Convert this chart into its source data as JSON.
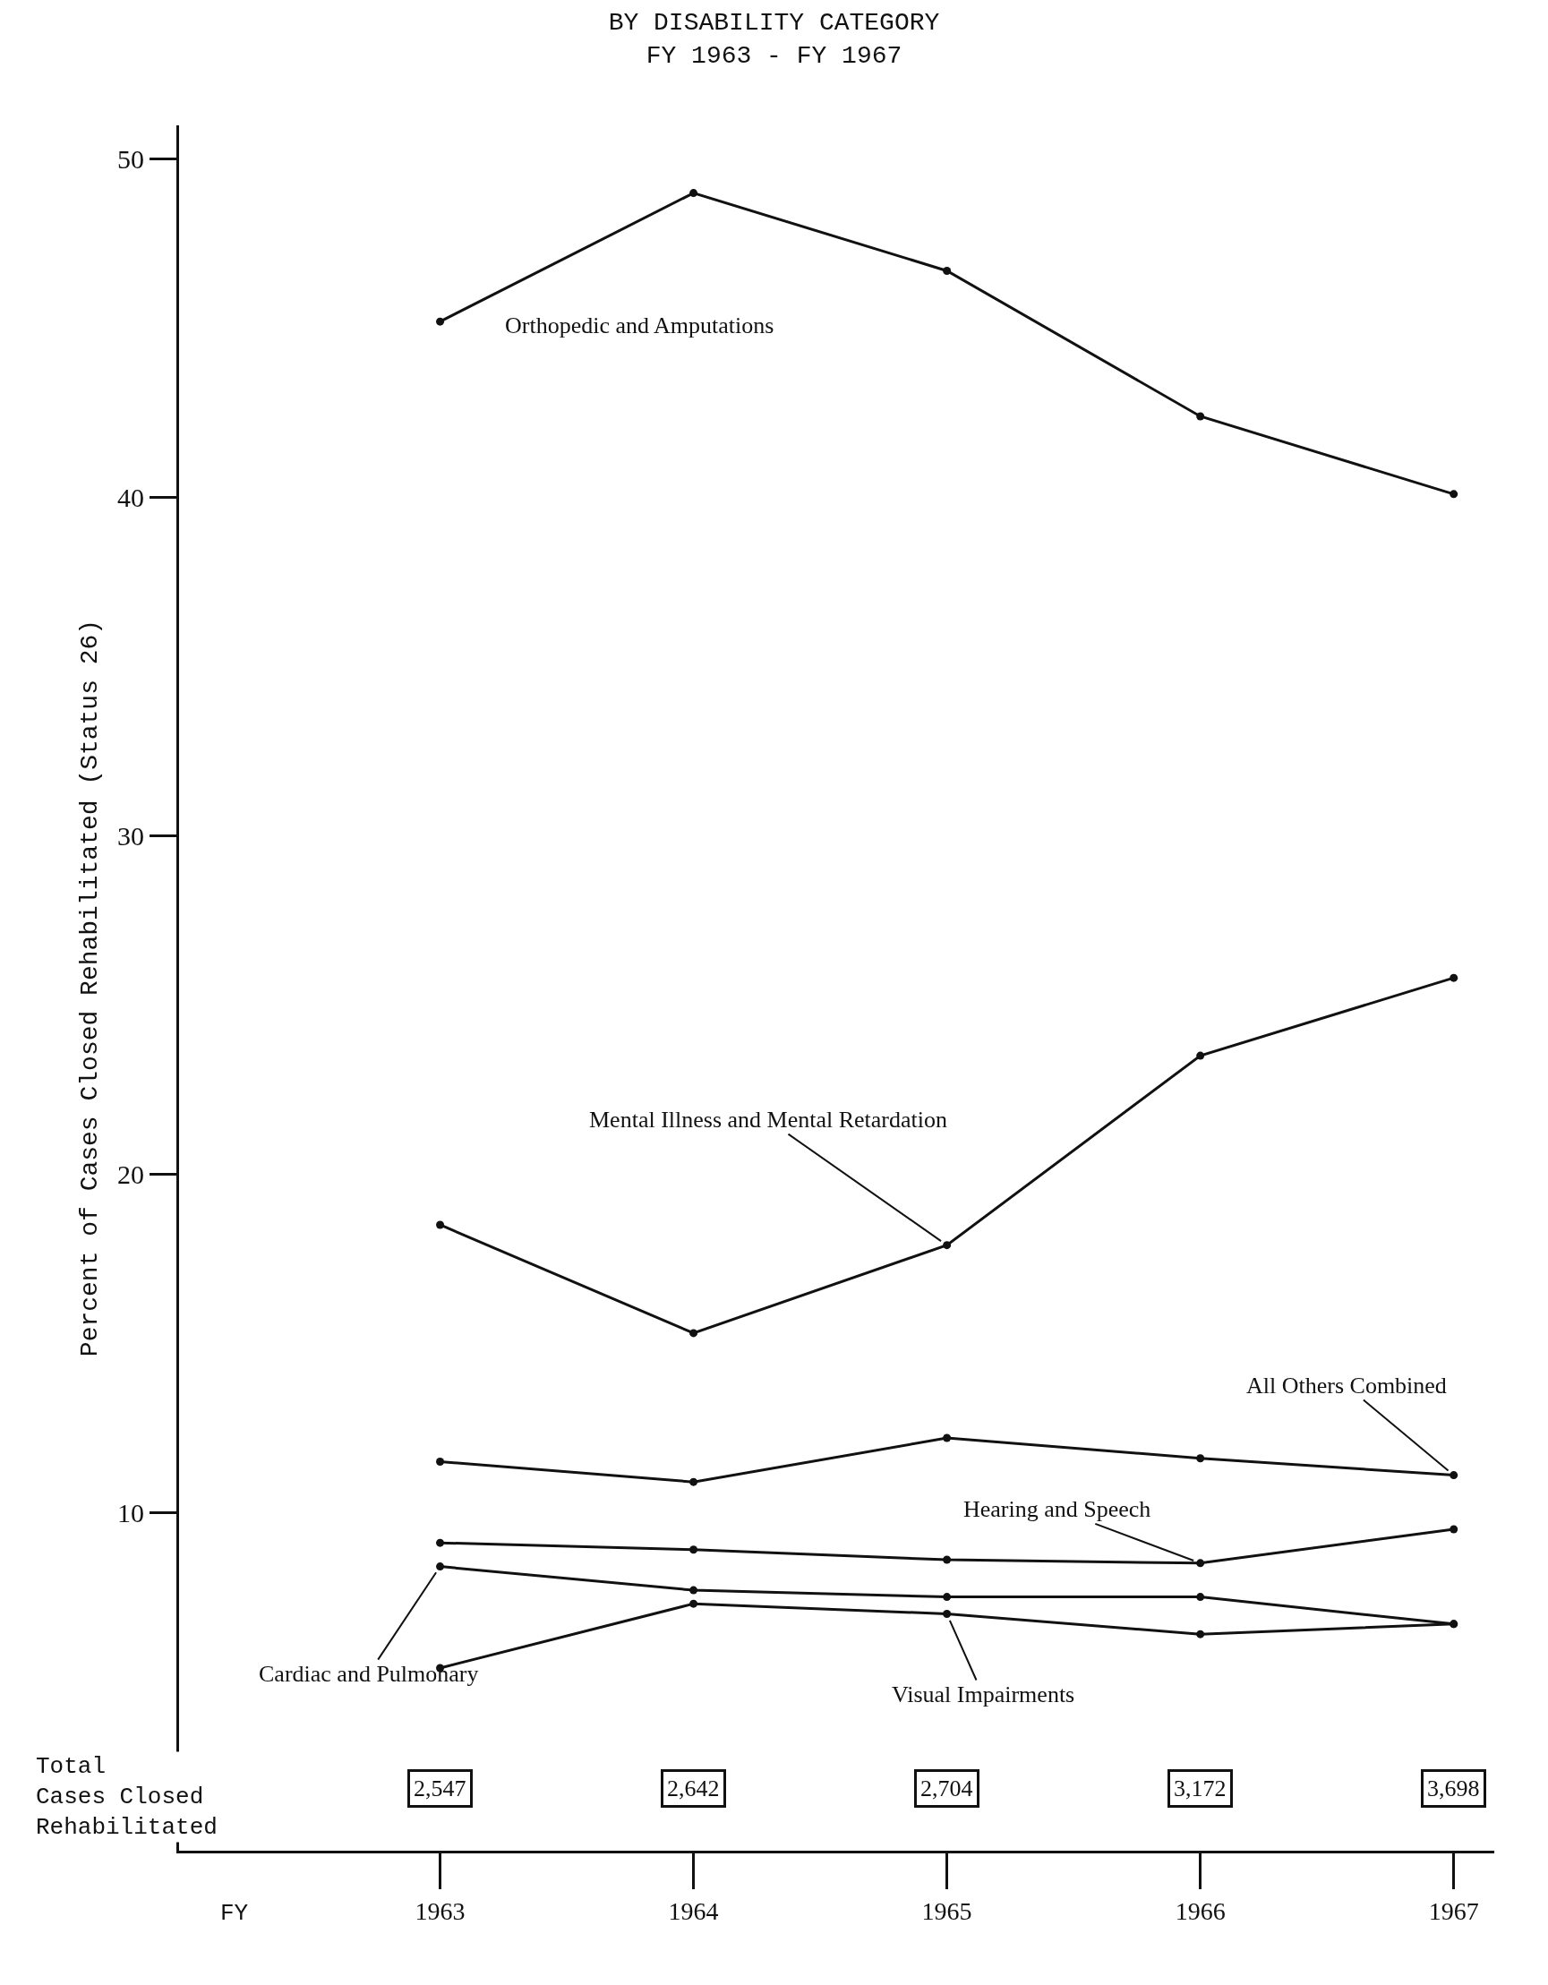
{
  "chart_data": {
    "type": "line",
    "title": "BY DISABILITY CATEGORY\nFY 1963 - FY 1967",
    "ylabel": "Percent of Cases Closed Rehabilitated (Status 26)",
    "x": [
      1963,
      1964,
      1965,
      1966,
      1967
    ],
    "series": [
      {
        "name": "Orthopedic and Amputations",
        "color": "#111111",
        "values": [
          45.2,
          49.0,
          46.7,
          42.4,
          40.1
        ]
      },
      {
        "name": "Mental Illness and Mental Retardation",
        "color": "#111111",
        "values": [
          18.5,
          15.3,
          17.9,
          23.5,
          25.8
        ]
      },
      {
        "name": "All Others Combined",
        "color": "#111111",
        "values": [
          11.5,
          10.9,
          12.2,
          11.6,
          11.1
        ]
      },
      {
        "name": "Hearing and Speech",
        "color": "#111111",
        "values": [
          9.1,
          8.9,
          8.6,
          8.5,
          9.5
        ]
      },
      {
        "name": "Cardiac and Pulmonary",
        "color": "#111111",
        "values": [
          8.4,
          7.7,
          7.5,
          7.5,
          6.7
        ]
      },
      {
        "name": "Visual Impairments",
        "color": "#111111",
        "values": [
          5.4,
          7.3,
          7.0,
          6.4,
          6.7
        ]
      }
    ],
    "annotations": [
      "Total\nCases Closed\nRehabilitated",
      "FY",
      "2,547",
      "2,642",
      "2,704",
      "3,172",
      "3,698"
    ],
    "xlim": [
      1961.97,
      1967.16
    ],
    "ylim": [
      0,
      51
    ],
    "xticks": [
      1963,
      1964,
      1965,
      1966,
      1967
    ],
    "yticks": [
      10,
      20,
      30,
      40,
      50
    ],
    "legend": false,
    "marker": "circle",
    "line_style": "solid"
  }
}
